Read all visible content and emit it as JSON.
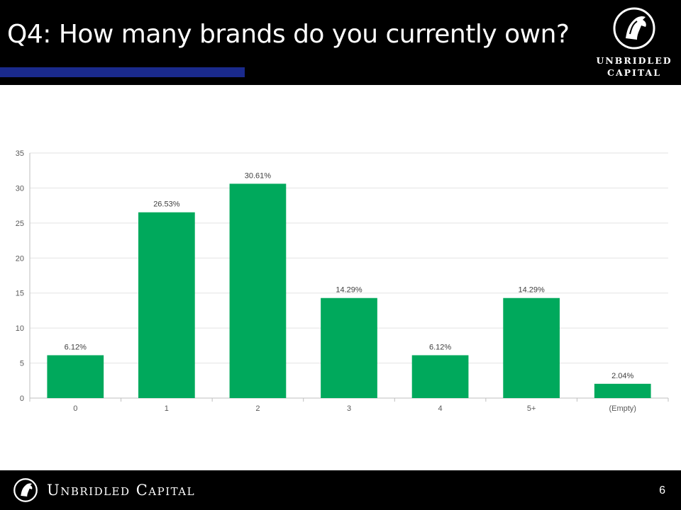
{
  "slide": {
    "title": "Q4: How many brands do you currently own?",
    "page_number": "6"
  },
  "brand": {
    "logo_line1": "UNBRIDLED",
    "logo_line2": "CAPITAL",
    "footer_name": "Unbridled Capital",
    "accent_color": "#1a2a8c",
    "icon": "horse-head-icon"
  },
  "chart_data": {
    "type": "bar",
    "title": "",
    "xlabel": "",
    "ylabel": "",
    "categories": [
      "0",
      "1",
      "2",
      "3",
      "4",
      "5+",
      "(Empty)"
    ],
    "values": [
      6.12,
      26.53,
      30.61,
      14.29,
      6.12,
      14.29,
      2.04
    ],
    "data_labels": [
      "6.12%",
      "26.53%",
      "30.61%",
      "14.29%",
      "6.12%",
      "14.29%",
      "2.04%"
    ],
    "ylim": [
      0,
      35
    ],
    "yticks": [
      0,
      5,
      10,
      15,
      20,
      25,
      30,
      35
    ],
    "grid": true,
    "legend": "none",
    "bar_color": "#00a95c"
  }
}
